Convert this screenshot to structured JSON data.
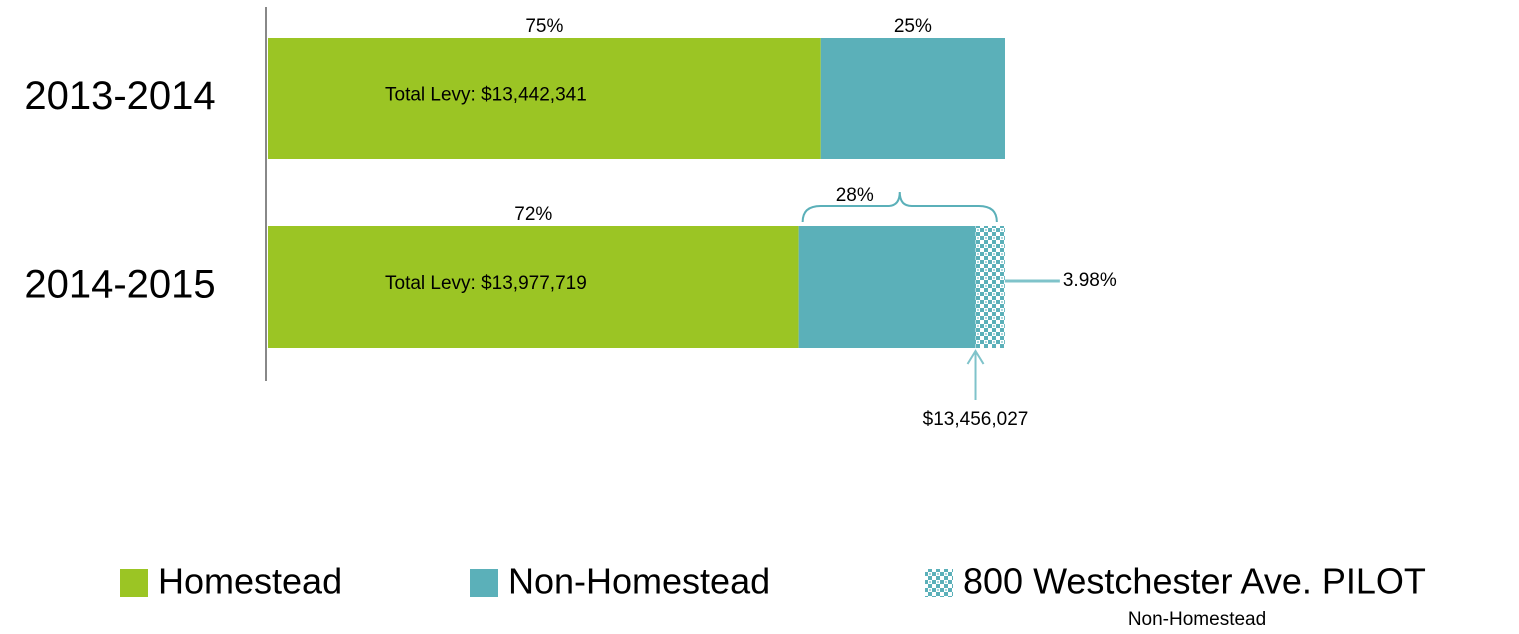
{
  "chart_data": {
    "type": "bar",
    "orientation": "horizontal",
    "stacked": true,
    "categories": [
      "2013-2014",
      "2014-2015"
    ],
    "series": [
      {
        "name": "Homestead",
        "color": "#9bc524",
        "values": [
          75,
          72
        ],
        "value_labels": [
          "75%",
          "72%"
        ]
      },
      {
        "name": "Non-Homestead",
        "color": "#5bb0b9",
        "values": [
          25,
          24
        ],
        "value_labels": [
          "25%",
          null
        ]
      },
      {
        "name": "800 Westchester Ave. PILOT",
        "color": "#5bb0b9",
        "pattern": "checker",
        "values": [
          null,
          3.98
        ],
        "value_labels": [
          null,
          "3.98%"
        ]
      }
    ],
    "bar_labels": [
      "Total Levy: $13,442,341",
      "Total Levy: $13,977,719"
    ],
    "group_label": {
      "value": 28,
      "label": "28%"
    },
    "annotation": "$13,456,027",
    "legend_note": "Non-Homestead"
  }
}
